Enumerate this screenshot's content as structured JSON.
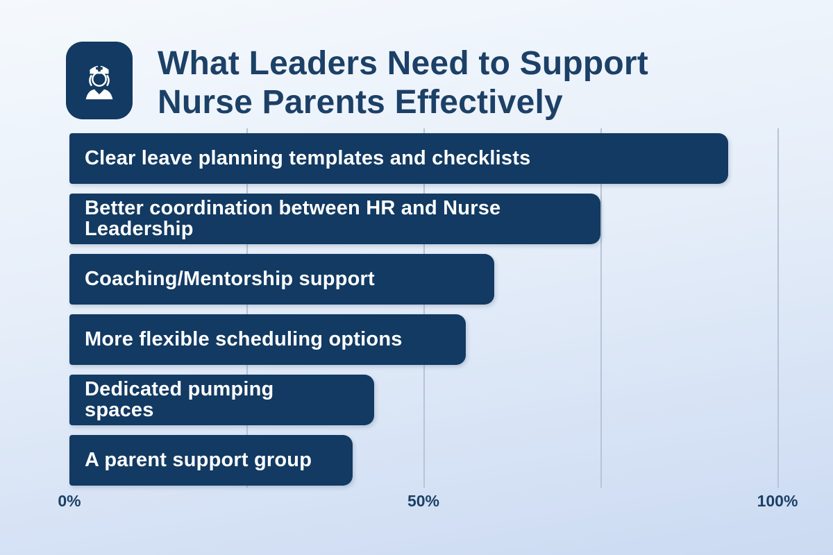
{
  "header": {
    "title_line1": "What Leaders Need to Support",
    "title_line2": "Nurse Parents Effectively",
    "icon": "nurse-icon"
  },
  "colors": {
    "bar": "#123A62",
    "title_text": "#1C4066",
    "bar_label_text": "#FFFFFF",
    "gridline": "#B7C3D6",
    "background_top": "#F5F9FD",
    "background_bottom": "#CBDAF2"
  },
  "chart_data": {
    "type": "bar",
    "orientation": "horizontal",
    "title": "What Leaders Need to Support Nurse Parents Effectively",
    "categories": [
      "Clear leave planning templates and checklists",
      "Better coordination between HR and Nurse\nLeadership",
      "Coaching/Mentorship support",
      "More flexible scheduling options",
      "Dedicated pumping\nspaces",
      "A parent support group"
    ],
    "values": [
      93,
      75,
      60,
      56,
      43,
      40
    ],
    "value_unit": "%",
    "xlim": [
      0,
      100
    ],
    "x_ticks": [
      {
        "label": "0%",
        "pos": 0
      },
      {
        "label": "50%",
        "pos": 50
      },
      {
        "label": "100%",
        "pos": 100
      }
    ],
    "gridlines": [
      25,
      50,
      75,
      100
    ],
    "grid": true,
    "legend": false,
    "labels_inside_bars": true
  }
}
